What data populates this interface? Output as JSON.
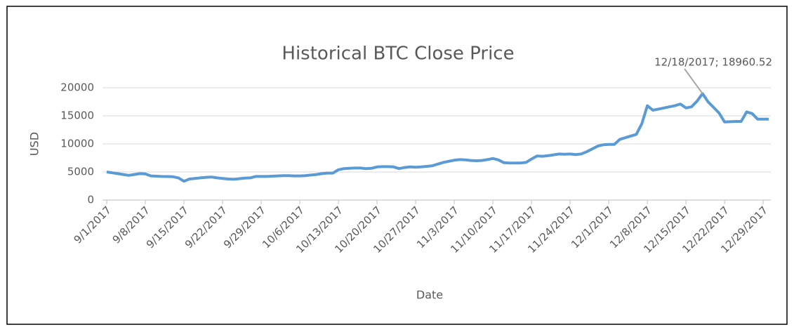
{
  "chart_data": {
    "type": "line",
    "title": "Historical BTC Close Price",
    "x_label": "Date",
    "y_label": "USD",
    "annotation": "12/18/2017; 18960.52",
    "categories": [
      "9/1/2017",
      null,
      null,
      null,
      null,
      null,
      null,
      "9/8/2017",
      null,
      null,
      null,
      null,
      null,
      null,
      "9/15/2017",
      null,
      null,
      null,
      null,
      null,
      null,
      "9/22/2017",
      null,
      null,
      null,
      null,
      null,
      null,
      "9/29/2017",
      null,
      null,
      null,
      null,
      null,
      null,
      "10/6/2017",
      null,
      null,
      null,
      null,
      null,
      null,
      "10/13/2017",
      null,
      null,
      null,
      null,
      null,
      null,
      "10/20/2017",
      null,
      null,
      null,
      null,
      null,
      null,
      "10/27/2017",
      null,
      null,
      null,
      null,
      null,
      null,
      "11/3/2017",
      null,
      null,
      null,
      null,
      null,
      null,
      "11/10/2017",
      null,
      null,
      null,
      null,
      null,
      null,
      "11/17/2017",
      null,
      null,
      null,
      null,
      null,
      null,
      "11/24/2017",
      null,
      null,
      null,
      null,
      null,
      null,
      "12/1/2017",
      null,
      null,
      null,
      null,
      null,
      null,
      "12/8/2017",
      null,
      null,
      null,
      null,
      null,
      null,
      "12/15/2017",
      null,
      null,
      null,
      null,
      null,
      null,
      "12/22/2017",
      null,
      null,
      null,
      null,
      null,
      null,
      "12/29/2017",
      null
    ],
    "series": [
      {
        "name": "Close",
        "color": "#5b9bd5",
        "values": [
          5000,
          4850,
          4700,
          4550,
          4400,
          4550,
          4700,
          4650,
          4300,
          4250,
          4200,
          4180,
          4150,
          3950,
          3350,
          3750,
          3850,
          3950,
          4050,
          4100,
          3950,
          3850,
          3750,
          3700,
          3800,
          3900,
          3950,
          4200,
          4200,
          4200,
          4250,
          4300,
          4350,
          4350,
          4300,
          4300,
          4350,
          4450,
          4550,
          4700,
          4800,
          4800,
          5400,
          5600,
          5650,
          5700,
          5700,
          5600,
          5650,
          5900,
          5950,
          5950,
          5900,
          5600,
          5800,
          5900,
          5850,
          5900,
          6000,
          6100,
          6400,
          6700,
          6900,
          7100,
          7200,
          7150,
          7050,
          7000,
          7050,
          7200,
          7400,
          7150,
          6650,
          6600,
          6600,
          6600,
          6700,
          7300,
          7850,
          7800,
          7900,
          8050,
          8200,
          8150,
          8200,
          8100,
          8200,
          8600,
          9100,
          9600,
          9850,
          9900,
          9900,
          10800,
          11100,
          11400,
          11700,
          13600,
          16800,
          16000,
          16200,
          16400,
          16600,
          16800,
          17100,
          16400,
          16600,
          17600,
          18960.52,
          17500,
          16500,
          15500,
          13900,
          13950,
          14000,
          14000,
          15700,
          15400,
          14400,
          14400,
          14400
        ]
      }
    ],
    "ylim": [
      0,
      20000
    ],
    "yticks": [
      0,
      5000,
      10000,
      15000,
      20000
    ],
    "grid": true
  }
}
